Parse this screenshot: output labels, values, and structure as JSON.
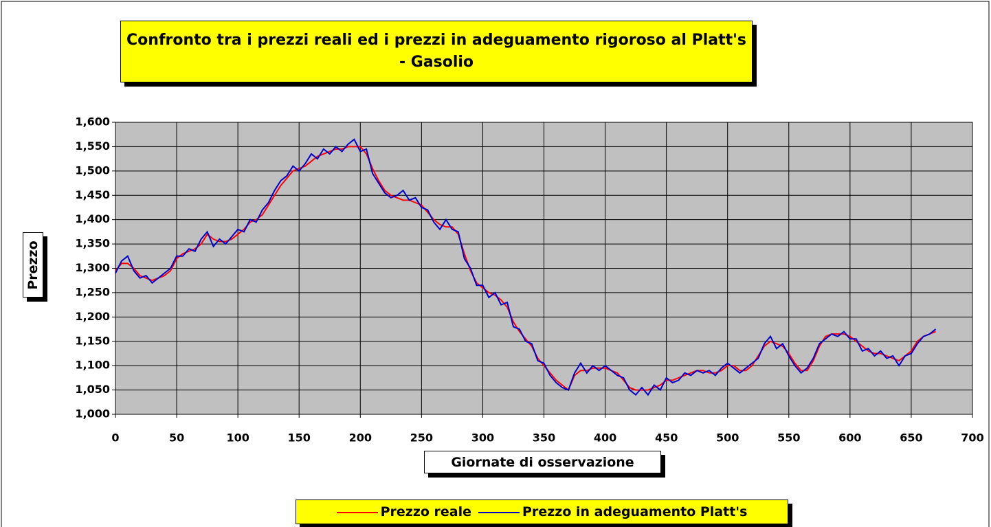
{
  "chart_data": {
    "type": "line",
    "title": "Confronto tra i prezzi reali ed i prezzi in adeguamento rigoroso al Platt's - Gasolio",
    "x_label": "Giornate di osservazione",
    "y_label": "Prezzo",
    "grid": true,
    "legend": "bottom",
    "xlim": [
      0,
      700
    ],
    "xticks": [
      0,
      50,
      100,
      150,
      200,
      250,
      300,
      350,
      400,
      450,
      500,
      550,
      600,
      650,
      700
    ],
    "ylim": [
      1,
      1.6
    ],
    "yticks": [
      {
        "value": 1,
        "label": "1,000"
      },
      {
        "value": 1.05,
        "label": "1,050"
      },
      {
        "value": 1.1,
        "label": "1,100"
      },
      {
        "value": 1.15,
        "label": "1,150"
      },
      {
        "value": 1.2,
        "label": "1,200"
      },
      {
        "value": 1.25,
        "label": "1,250"
      },
      {
        "value": 1.3,
        "label": "1,300"
      },
      {
        "value": 1.35,
        "label": "1,350"
      },
      {
        "value": 1.4,
        "label": "1,400"
      },
      {
        "value": 1.45,
        "label": "1,450"
      },
      {
        "value": 1.5,
        "label": "1,500"
      },
      {
        "value": 1.55,
        "label": "1,550"
      },
      {
        "value": 1.6,
        "label": "1,600"
      }
    ],
    "x": [
      0,
      5,
      10,
      15,
      20,
      25,
      30,
      35,
      40,
      45,
      50,
      55,
      60,
      65,
      70,
      75,
      80,
      85,
      90,
      95,
      100,
      105,
      110,
      115,
      120,
      125,
      130,
      135,
      140,
      145,
      150,
      155,
      160,
      165,
      170,
      175,
      180,
      185,
      190,
      195,
      200,
      205,
      210,
      215,
      220,
      225,
      230,
      235,
      240,
      245,
      250,
      255,
      260,
      265,
      270,
      275,
      280,
      285,
      290,
      295,
      300,
      305,
      310,
      315,
      320,
      325,
      330,
      335,
      340,
      345,
      350,
      355,
      360,
      365,
      370,
      375,
      380,
      385,
      390,
      395,
      400,
      405,
      410,
      415,
      420,
      425,
      430,
      435,
      440,
      445,
      450,
      455,
      460,
      465,
      470,
      475,
      480,
      485,
      490,
      495,
      500,
      505,
      510,
      515,
      520,
      525,
      530,
      535,
      540,
      545,
      550,
      555,
      560,
      565,
      570,
      575,
      580,
      585,
      590,
      595,
      600,
      605,
      610,
      615,
      620,
      625,
      630,
      635,
      640,
      645,
      650,
      655,
      660,
      665,
      670
    ],
    "series": [
      {
        "name": "Prezzo reale",
        "color": "#ff0000",
        "values": [
          1.295,
          1.31,
          1.31,
          1.3,
          1.285,
          1.28,
          1.275,
          1.28,
          1.285,
          1.295,
          1.32,
          1.33,
          1.335,
          1.34,
          1.35,
          1.37,
          1.36,
          1.355,
          1.355,
          1.36,
          1.37,
          1.38,
          1.395,
          1.4,
          1.41,
          1.43,
          1.45,
          1.47,
          1.485,
          1.5,
          1.505,
          1.51,
          1.52,
          1.53,
          1.535,
          1.54,
          1.545,
          1.545,
          1.55,
          1.55,
          1.55,
          1.535,
          1.505,
          1.48,
          1.46,
          1.45,
          1.445,
          1.44,
          1.44,
          1.435,
          1.43,
          1.415,
          1.4,
          1.39,
          1.385,
          1.385,
          1.37,
          1.33,
          1.295,
          1.27,
          1.26,
          1.25,
          1.245,
          1.235,
          1.22,
          1.19,
          1.17,
          1.155,
          1.14,
          1.115,
          1.1,
          1.085,
          1.07,
          1.06,
          1.05,
          1.08,
          1.09,
          1.09,
          1.095,
          1.095,
          1.095,
          1.09,
          1.085,
          1.07,
          1.055,
          1.05,
          1.05,
          1.05,
          1.055,
          1.06,
          1.07,
          1.07,
          1.075,
          1.08,
          1.085,
          1.09,
          1.09,
          1.085,
          1.085,
          1.09,
          1.1,
          1.1,
          1.09,
          1.09,
          1.1,
          1.12,
          1.14,
          1.15,
          1.145,
          1.14,
          1.125,
          1.105,
          1.09,
          1.09,
          1.11,
          1.14,
          1.16,
          1.165,
          1.165,
          1.165,
          1.16,
          1.15,
          1.14,
          1.13,
          1.125,
          1.125,
          1.12,
          1.115,
          1.11,
          1.12,
          1.13,
          1.15,
          1.16,
          1.165,
          1.17
        ]
      },
      {
        "name": "Prezzo in adeguamento Platt's",
        "color": "#0000cc",
        "values": [
          1.29,
          1.315,
          1.325,
          1.295,
          1.28,
          1.285,
          1.27,
          1.28,
          1.29,
          1.3,
          1.325,
          1.325,
          1.34,
          1.335,
          1.36,
          1.375,
          1.345,
          1.36,
          1.35,
          1.365,
          1.38,
          1.375,
          1.4,
          1.395,
          1.42,
          1.435,
          1.46,
          1.48,
          1.49,
          1.51,
          1.5,
          1.515,
          1.535,
          1.525,
          1.545,
          1.535,
          1.55,
          1.54,
          1.555,
          1.565,
          1.54,
          1.545,
          1.495,
          1.475,
          1.455,
          1.445,
          1.45,
          1.46,
          1.44,
          1.445,
          1.425,
          1.42,
          1.395,
          1.38,
          1.4,
          1.38,
          1.375,
          1.32,
          1.3,
          1.265,
          1.265,
          1.24,
          1.25,
          1.225,
          1.23,
          1.18,
          1.175,
          1.15,
          1.145,
          1.11,
          1.105,
          1.08,
          1.065,
          1.055,
          1.05,
          1.085,
          1.105,
          1.085,
          1.1,
          1.09,
          1.1,
          1.09,
          1.08,
          1.075,
          1.05,
          1.04,
          1.055,
          1.04,
          1.06,
          1.05,
          1.075,
          1.065,
          1.07,
          1.085,
          1.08,
          1.09,
          1.085,
          1.09,
          1.08,
          1.095,
          1.105,
          1.095,
          1.085,
          1.095,
          1.105,
          1.115,
          1.145,
          1.16,
          1.135,
          1.145,
          1.12,
          1.1,
          1.085,
          1.095,
          1.115,
          1.145,
          1.155,
          1.165,
          1.16,
          1.17,
          1.155,
          1.155,
          1.13,
          1.135,
          1.12,
          1.13,
          1.115,
          1.12,
          1.1,
          1.12,
          1.125,
          1.145,
          1.16,
          1.165,
          1.175
        ]
      }
    ]
  }
}
